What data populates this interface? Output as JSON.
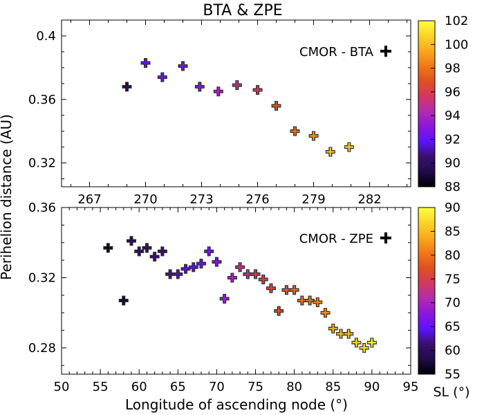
{
  "figure": {
    "title": "BTA & ZPE",
    "ylabel": "Perihelion distance (AU)",
    "xlabel": "Longitude of ascending node (°)",
    "colorbar_label": "SL (°)",
    "colormap": [
      "#000004",
      "#1f0c48",
      "#3b0f70",
      "#5d12ff",
      "#8c17d9",
      "#b32bb0",
      "#d1385f",
      "#e0501f",
      "#f07818",
      "#f8a81e",
      "#fcd428",
      "#fcff44"
    ]
  },
  "chart_data": [
    {
      "type": "scatter",
      "title": "BTA & ZPE",
      "legend": "CMOR - BTA",
      "legend_position": "top-right",
      "xlabel": "",
      "ylabel": "Perihelion distance (AU)",
      "xlim": [
        265.5,
        284.2
      ],
      "ylim": [
        0.305,
        0.41
      ],
      "xticks": [
        267,
        270,
        273,
        276,
        279,
        282
      ],
      "xtick_labels": [
        "267",
        "270",
        "273",
        "276",
        "279",
        "282"
      ],
      "yticks": [
        0.32,
        0.36,
        0.4
      ],
      "ytick_labels": [
        "0.32",
        "0.36",
        "0.4"
      ],
      "colorbar": {
        "min": 88,
        "max": 102,
        "ticks": [
          88,
          90,
          92,
          94,
          96,
          98,
          100,
          102
        ],
        "tick_labels": [
          "88",
          "90",
          "92",
          "94",
          "96",
          "98",
          "100",
          "102"
        ]
      },
      "points": [
        {
          "x": 269.0,
          "y": 0.368,
          "c": 89.5
        },
        {
          "x": 270.0,
          "y": 0.383,
          "c": 91.8
        },
        {
          "x": 270.9,
          "y": 0.374,
          "c": 92.2
        },
        {
          "x": 272.0,
          "y": 0.381,
          "c": 92.5
        },
        {
          "x": 272.9,
          "y": 0.368,
          "c": 93.0
        },
        {
          "x": 273.9,
          "y": 0.365,
          "c": 94.0
        },
        {
          "x": 274.9,
          "y": 0.369,
          "c": 95.0
        },
        {
          "x": 276.0,
          "y": 0.366,
          "c": 95.7
        },
        {
          "x": 277.0,
          "y": 0.356,
          "c": 97.0
        },
        {
          "x": 278.0,
          "y": 0.34,
          "c": 98.0
        },
        {
          "x": 279.0,
          "y": 0.337,
          "c": 99.0
        },
        {
          "x": 279.9,
          "y": 0.327,
          "c": 100.0
        },
        {
          "x": 280.9,
          "y": 0.33,
          "c": 100.6
        }
      ]
    },
    {
      "type": "scatter",
      "title": "",
      "legend": "CMOR - ZPE",
      "legend_position": "top-right",
      "xlabel": "Longitude of ascending node (°)",
      "ylabel": "Perihelion distance (AU)",
      "xlim": [
        50,
        95
      ],
      "ylim": [
        0.265,
        0.36
      ],
      "xticks": [
        50,
        55,
        60,
        65,
        70,
        75,
        80,
        85,
        90,
        95
      ],
      "xtick_labels": [
        "50",
        "55",
        "60",
        "65",
        "70",
        "75",
        "80",
        "85",
        "90",
        "95"
      ],
      "yticks": [
        0.28,
        0.32,
        0.36
      ],
      "ytick_labels": [
        "0.28",
        "0.32",
        "0.36"
      ],
      "colorbar": {
        "min": 55,
        "max": 90,
        "ticks": [
          55,
          60,
          65,
          70,
          75,
          80,
          85,
          90
        ],
        "tick_labels": [
          "55",
          "60",
          "65",
          "70",
          "75",
          "80",
          "85",
          "90"
        ]
      },
      "points": [
        {
          "x": 56.0,
          "y": 0.337,
          "c": 56
        },
        {
          "x": 58.0,
          "y": 0.307,
          "c": 57
        },
        {
          "x": 59.0,
          "y": 0.341,
          "c": 59
        },
        {
          "x": 60.0,
          "y": 0.335,
          "c": 60
        },
        {
          "x": 61.0,
          "y": 0.337,
          "c": 60
        },
        {
          "x": 62.0,
          "y": 0.332,
          "c": 61
        },
        {
          "x": 63.0,
          "y": 0.335,
          "c": 61
        },
        {
          "x": 64.0,
          "y": 0.322,
          "c": 62
        },
        {
          "x": 65.0,
          "y": 0.322,
          "c": 63
        },
        {
          "x": 66.0,
          "y": 0.325,
          "c": 64
        },
        {
          "x": 67.0,
          "y": 0.326,
          "c": 64
        },
        {
          "x": 68.0,
          "y": 0.328,
          "c": 65
        },
        {
          "x": 69.0,
          "y": 0.335,
          "c": 66
        },
        {
          "x": 70.0,
          "y": 0.329,
          "c": 67
        },
        {
          "x": 71.0,
          "y": 0.308,
          "c": 69
        },
        {
          "x": 72.0,
          "y": 0.32,
          "c": 70
        },
        {
          "x": 73.0,
          "y": 0.326,
          "c": 72
        },
        {
          "x": 74.0,
          "y": 0.322,
          "c": 73
        },
        {
          "x": 75.0,
          "y": 0.322,
          "c": 74
        },
        {
          "x": 76.0,
          "y": 0.319,
          "c": 75
        },
        {
          "x": 77.0,
          "y": 0.314,
          "c": 76
        },
        {
          "x": 78.0,
          "y": 0.301,
          "c": 77
        },
        {
          "x": 79.0,
          "y": 0.313,
          "c": 78
        },
        {
          "x": 80.0,
          "y": 0.313,
          "c": 79
        },
        {
          "x": 81.0,
          "y": 0.307,
          "c": 80
        },
        {
          "x": 82.0,
          "y": 0.307,
          "c": 80
        },
        {
          "x": 83.0,
          "y": 0.306,
          "c": 81
        },
        {
          "x": 84.0,
          "y": 0.3,
          "c": 82
        },
        {
          "x": 85.0,
          "y": 0.291,
          "c": 84
        },
        {
          "x": 86.0,
          "y": 0.288,
          "c": 85
        },
        {
          "x": 87.0,
          "y": 0.288,
          "c": 85
        },
        {
          "x": 88.0,
          "y": 0.283,
          "c": 87
        },
        {
          "x": 89.0,
          "y": 0.28,
          "c": 88
        },
        {
          "x": 90.0,
          "y": 0.283,
          "c": 89
        }
      ]
    }
  ]
}
